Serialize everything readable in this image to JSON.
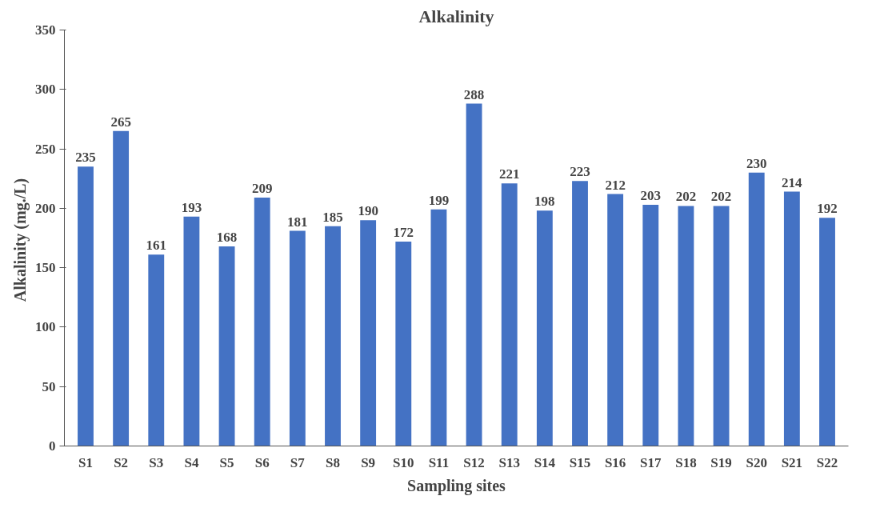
{
  "chart_data": {
    "type": "bar",
    "title": "Alkalinity",
    "xlabel": "Sampling sites",
    "ylabel": "Alkalinity  (mg./L)",
    "categories": [
      "S1",
      "S2",
      "S3",
      "S4",
      "S5",
      "S6",
      "S7",
      "S8",
      "S9",
      "S10",
      "S11",
      "S12",
      "S13",
      "S14",
      "S15",
      "S16",
      "S17",
      "S18",
      "S19",
      "S20",
      "S21",
      "S22"
    ],
    "values": [
      235,
      265,
      161,
      193,
      168,
      209,
      181,
      185,
      190,
      172,
      199,
      288,
      221,
      198,
      223,
      212,
      203,
      202,
      202,
      230,
      214,
      192
    ],
    "color": "#4472c4",
    "ylim": [
      0,
      350
    ],
    "yticks": [
      0,
      50,
      100,
      150,
      200,
      250,
      300,
      350
    ],
    "grid": false,
    "data_labels": true
  }
}
